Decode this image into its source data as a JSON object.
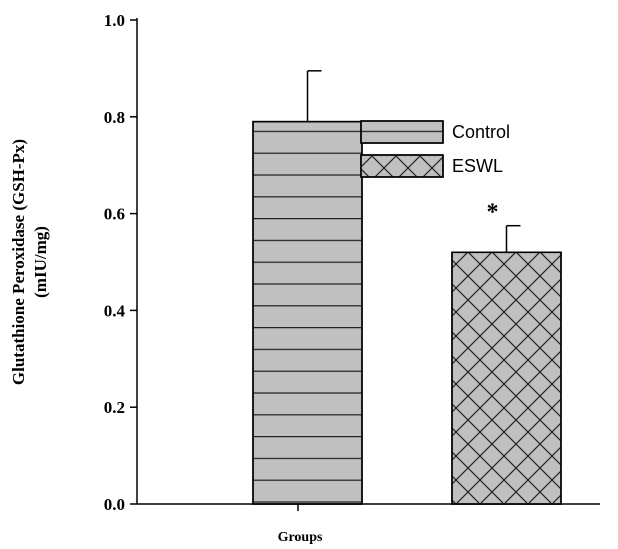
{
  "chart_data": {
    "type": "bar",
    "xlabel": "Groups",
    "ylabel": [
      "Glutathione Peroxidase (GSH-Px)",
      "(mIU/mg)"
    ],
    "series": [
      {
        "name": "Control",
        "color": "#c0c0c0",
        "pattern": "horizontal",
        "values": [
          0.79
        ],
        "errors": [
          0.105
        ]
      },
      {
        "name": "ESWL",
        "color": "#c0c0c0",
        "pattern": "crosshatch",
        "values": [
          0.52
        ],
        "errors": [
          0.055
        ],
        "annotation": "*"
      }
    ],
    "ylim": [
      0,
      1
    ],
    "yticks": [
      {
        "value": 0,
        "label": "0.0"
      },
      {
        "value": 0.2,
        "label": "0.2"
      },
      {
        "value": 0.4,
        "label": "0.4"
      },
      {
        "value": 0.6,
        "label": "0.6"
      },
      {
        "value": 0.8,
        "label": "0.8"
      },
      {
        "value": 1,
        "label": "1.0"
      }
    ],
    "grid": false
  }
}
